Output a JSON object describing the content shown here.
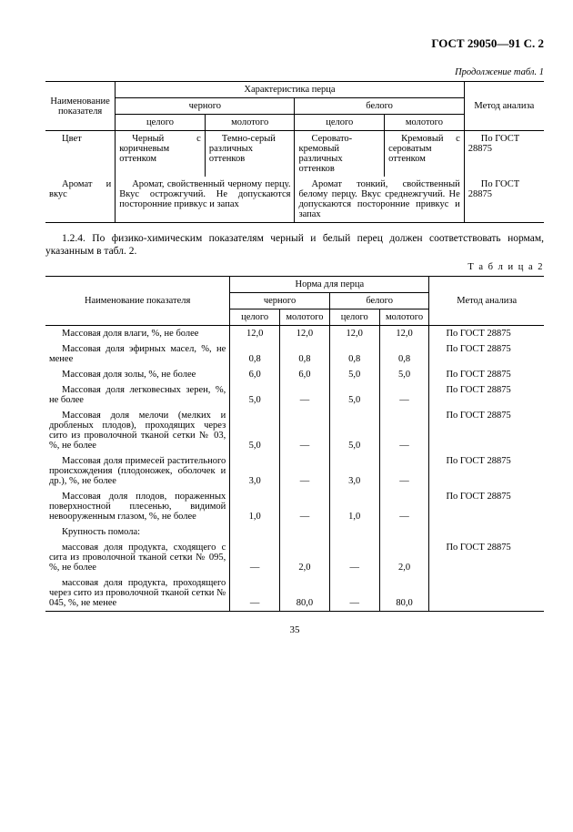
{
  "header": "ГОСТ 29050—91 С. 2",
  "table1": {
    "caption": "Продолжение табл. 1",
    "head_col1": "Наименование показателя",
    "head_char": "Характеристика перца",
    "head_black": "черного",
    "head_white": "белого",
    "head_whole": "целого",
    "head_ground": "молотого",
    "head_method": "Метод анализа",
    "r1": {
      "name": "Цвет",
      "c1": "Черный с коричневым оттенком",
      "c2": "Темно-серый различных оттенков",
      "c3": "Серовато-кремовый различных оттенков",
      "c4": "Кремовый с сероватым оттенком",
      "method": "По ГОСТ 28875"
    },
    "r2": {
      "name": "Аромат и вкус",
      "black": "Аромат, свойственный черному перцу. Вкус острожгучий. Не допускаются посторонние привкус и запах",
      "white": "Аромат тонкий, свойственный белому перцу. Вкус среднежгучий. Не допускаются посторонние привкус и запах",
      "method": "По ГОСТ 28875"
    }
  },
  "para124": "1.2.4. По физико-химическим показателям черный и белый перец должен соответствовать нормам, указанным в табл. 2.",
  "table2": {
    "caption": "Т а б л и ц а 2",
    "head_col1": "Наименование показателя",
    "head_norm": "Норма для перца",
    "head_black": "черного",
    "head_white": "белого",
    "head_whole": "целого",
    "head_ground": "молотого",
    "head_method": "Метод анализа",
    "rows": [
      {
        "name": "Массовая доля влаги, %, не более",
        "v": [
          "12,0",
          "12,0",
          "12,0",
          "12,0"
        ],
        "m": "По ГОСТ 28875"
      },
      {
        "name": "Массовая доля эфирных масел, %, не менее",
        "v": [
          "0,8",
          "0,8",
          "0,8",
          "0,8"
        ],
        "m": "По ГОСТ 28875"
      },
      {
        "name": "Массовая доля золы, %, не более",
        "v": [
          "6,0",
          "6,0",
          "5,0",
          "5,0"
        ],
        "m": "По ГОСТ 28875"
      },
      {
        "name": "Массовая доля легковесных зерен, %, не более",
        "v": [
          "5,0",
          "—",
          "5,0",
          "—"
        ],
        "m": "По ГОСТ 28875"
      },
      {
        "name": "Массовая доля мелочи (мелких и дробленых плодов), проходящих через сито из проволочной тканой сетки № 03, %, не более",
        "v": [
          "5,0",
          "—",
          "5,0",
          "—"
        ],
        "m": "По ГОСТ 28875"
      },
      {
        "name": "Массовая доля примесей растительного происхождения (плодоножек, оболочек и др.), %, не более",
        "v": [
          "3,0",
          "—",
          "3,0",
          "—"
        ],
        "m": "По ГОСТ 28875"
      },
      {
        "name": "Массовая доля плодов, пораженных поверхностной плесенью, видимой невооруженным глазом, %, не более",
        "v": [
          "1,0",
          "—",
          "1,0",
          "—"
        ],
        "m": "По ГОСТ 28875"
      },
      {
        "name": "Крупность помола:",
        "v": [
          "",
          "",
          "",
          ""
        ],
        "m": ""
      },
      {
        "name": "массовая доля продукта, сходящего с сита из проволочной тканой сетки № 095, %, не более",
        "v": [
          "—",
          "2,0",
          "—",
          "2,0"
        ],
        "m": "По ГОСТ 28875"
      },
      {
        "name": "массовая доля продукта, проходящего через сито из проволочной тканой сетки № 045, %, не менее",
        "v": [
          "—",
          "80,0",
          "—",
          "80,0"
        ],
        "m": ""
      }
    ]
  },
  "pagenum": "35",
  "colwidths": {
    "t1": [
      "14%",
      "18%",
      "18%",
      "18%",
      "16%",
      "16%"
    ],
    "t2": [
      "37%",
      "10%",
      "10%",
      "10%",
      "10%",
      "23%"
    ]
  }
}
